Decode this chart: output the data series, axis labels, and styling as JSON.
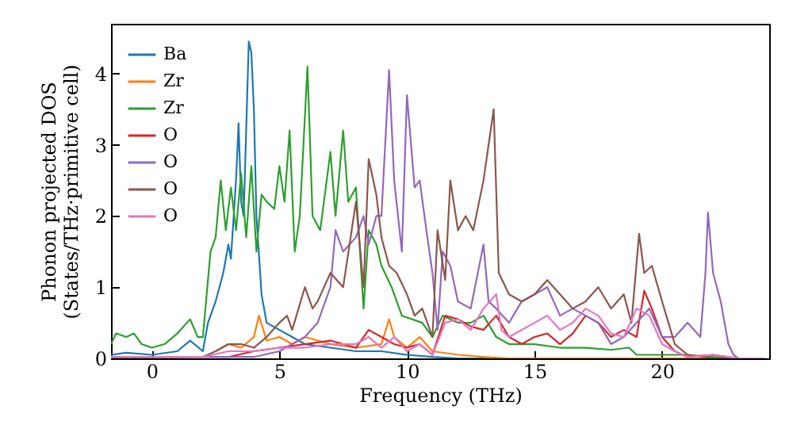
{
  "chart_data": {
    "type": "line",
    "xlabel": "Frequency (THz)",
    "ylabel": "Phonon projected DOS\n(States/THz·primitive cell)",
    "xlim": [
      -1.6,
      24.2
    ],
    "ylim": [
      0,
      4.7
    ],
    "xticks": [
      0,
      5,
      10,
      15,
      20
    ],
    "yticks": [
      0,
      1,
      2,
      3,
      4
    ],
    "grid": false,
    "legend": "top left",
    "series": [
      {
        "name": "Ba",
        "color": "#1f77b4",
        "x": [
          -1.6,
          -1,
          0,
          1,
          1.5,
          2,
          2.2,
          2.5,
          2.8,
          3.0,
          3.1,
          3.3,
          3.4,
          3.5,
          3.6,
          3.8,
          3.9,
          4.0,
          4.1,
          4.3,
          4.5,
          5,
          5.5,
          6,
          7,
          8,
          9,
          10,
          11,
          12,
          24
        ],
        "values": [
          0.05,
          0.08,
          0.05,
          0.1,
          0.25,
          0.1,
          0.5,
          0.8,
          1.2,
          1.6,
          1.4,
          2.5,
          3.3,
          2.2,
          2.0,
          4.45,
          4.3,
          3.5,
          2.0,
          0.9,
          0.5,
          0.4,
          0.3,
          0.2,
          0.15,
          0.1,
          0.1,
          0.05,
          0.02,
          0,
          0
        ]
      },
      {
        "name": "Zr",
        "color": "#ff7f0e",
        "x": [
          2.5,
          3,
          3.5,
          4,
          4.2,
          4.5,
          5,
          5.5,
          6,
          7,
          8,
          9,
          9.3,
          9.5,
          10,
          10.5,
          11,
          12,
          13,
          14,
          24
        ],
        "values": [
          0.1,
          0.2,
          0.15,
          0.3,
          0.6,
          0.25,
          0.3,
          0.2,
          0.3,
          0.2,
          0.15,
          0.2,
          0.55,
          0.3,
          0.15,
          0.3,
          0.1,
          0.05,
          0.02,
          0,
          0
        ]
      },
      {
        "name": "Zr",
        "color": "#2ca02c",
        "x": [
          -1.6,
          -1.4,
          -1,
          -0.7,
          -0.4,
          0,
          0.5,
          1,
          1.5,
          1.8,
          2.0,
          2.3,
          2.5,
          2.7,
          2.9,
          3.1,
          3.3,
          3.5,
          3.7,
          3.9,
          4.1,
          4.3,
          4.5,
          4.8,
          5.0,
          5.2,
          5.4,
          5.6,
          5.8,
          6.1,
          6.3,
          6.6,
          7.0,
          7.2,
          7.5,
          7.7,
          8.0,
          8.3,
          8.5,
          8.8,
          9.0,
          9.4,
          9.8,
          10.6,
          11,
          11.4,
          12,
          12.5,
          13,
          13.5,
          14,
          15,
          16,
          17,
          18,
          18.7,
          19,
          21,
          22,
          23,
          24
        ],
        "values": [
          0.2,
          0.35,
          0.3,
          0.35,
          0.2,
          0.15,
          0.2,
          0.35,
          0.55,
          0.3,
          0.3,
          1.5,
          1.7,
          2.5,
          1.8,
          2.4,
          1.8,
          2.6,
          1.7,
          2.7,
          1.5,
          2.3,
          2.2,
          2.1,
          2.7,
          2.2,
          3.2,
          1.5,
          2.0,
          4.1,
          2.0,
          1.8,
          2.9,
          2.0,
          3.2,
          2.2,
          2.4,
          0.7,
          1.8,
          1.6,
          1.3,
          1.0,
          0.6,
          0.5,
          0.3,
          0.6,
          0.5,
          0.5,
          0.6,
          0.3,
          0.2,
          0.2,
          0.15,
          0.15,
          0.12,
          0.15,
          0.05,
          0.05,
          0.02,
          0,
          0
        ]
      },
      {
        "name": "O",
        "color": "#d62728",
        "x": [
          -1.6,
          3,
          4,
          5,
          6,
          7,
          8,
          8.5,
          9,
          9.5,
          10,
          10.5,
          11,
          11.5,
          12,
          12.5,
          13,
          13.5,
          14,
          14.5,
          15,
          15.5,
          16,
          16.5,
          17,
          17.5,
          18,
          18.5,
          19,
          19.3,
          19.6,
          20,
          20.5,
          21,
          22,
          23,
          24
        ],
        "values": [
          0.02,
          0.02,
          0.1,
          0.15,
          0.2,
          0.25,
          0.15,
          0.4,
          0.3,
          0.2,
          0.15,
          0.2,
          0.05,
          0.6,
          0.55,
          0.45,
          0.4,
          0.6,
          0.3,
          0.2,
          0.3,
          0.35,
          0.2,
          0.35,
          0.6,
          0.5,
          0.3,
          0.4,
          0.3,
          0.95,
          0.7,
          0.3,
          0.1,
          0.02,
          0.05,
          0,
          0
        ]
      },
      {
        "name": "O",
        "color": "#9467bd",
        "x": [
          -1.6,
          4,
          5,
          6,
          6.5,
          7,
          7.2,
          7.5,
          8.0,
          8.3,
          8.5,
          8.8,
          9.0,
          9.3,
          9.5,
          9.8,
          10,
          10.3,
          10.5,
          10.8,
          11.0,
          11.2,
          11.4,
          11.7,
          12.0,
          12.5,
          13,
          13.2,
          13.5,
          14,
          14.5,
          15,
          15.5,
          16,
          16.5,
          17,
          17.5,
          18,
          18.5,
          19,
          19.5,
          20,
          20.5,
          21,
          21.5,
          21.7,
          21.8,
          22,
          22.3,
          22.6,
          22.8,
          23,
          24
        ],
        "values": [
          0.02,
          0.02,
          0.1,
          0.3,
          0.5,
          1.0,
          1.8,
          1.5,
          1.7,
          2.0,
          1.6,
          2.0,
          2.0,
          4.05,
          2.5,
          1.5,
          3.7,
          2.4,
          2.5,
          1.7,
          1.2,
          0.4,
          1.5,
          1.3,
          0.8,
          0.7,
          1.6,
          0.8,
          0.7,
          0.5,
          0.8,
          0.9,
          1.0,
          0.6,
          0.7,
          0.6,
          0.5,
          0.2,
          0.3,
          0.5,
          0.7,
          0.3,
          0.3,
          0.5,
          0.3,
          1.2,
          2.05,
          1.2,
          0.8,
          0.2,
          0.05,
          0,
          0
        ]
      },
      {
        "name": "O",
        "color": "#8c564b",
        "x": [
          -1.6,
          2,
          2.5,
          3,
          3.5,
          4,
          4.5,
          5,
          5.3,
          5.5,
          6,
          6.3,
          6.5,
          7,
          7.5,
          8,
          8.3,
          8.5,
          8.8,
          9.0,
          9.3,
          9.6,
          10,
          10.3,
          10.6,
          11,
          11.2,
          11.5,
          11.7,
          12.0,
          12.3,
          12.6,
          13,
          13.4,
          13.6,
          14,
          14.5,
          15,
          15.5,
          16,
          16.5,
          17,
          17.5,
          18,
          18.5,
          18.8,
          19.1,
          19.3,
          19.6,
          20,
          20.5,
          21,
          22,
          24
        ],
        "values": [
          0.01,
          0.02,
          0.1,
          0.2,
          0.2,
          0.15,
          0.3,
          0.5,
          0.6,
          0.4,
          1.0,
          0.7,
          0.8,
          1.2,
          1.0,
          2.2,
          1.0,
          2.8,
          2.3,
          1.7,
          1.3,
          1.2,
          0.9,
          0.6,
          0.7,
          0.3,
          1.8,
          1.1,
          2.5,
          1.8,
          2.0,
          1.8,
          2.5,
          3.5,
          1.2,
          0.9,
          0.8,
          0.9,
          1.1,
          0.9,
          0.7,
          0.8,
          1.0,
          0.7,
          0.9,
          0.5,
          1.75,
          1.2,
          1.3,
          0.8,
          0.2,
          0.05,
          0,
          0
        ]
      },
      {
        "name": "O",
        "color": "#e377c2",
        "x": [
          -1.6,
          2,
          3,
          4,
          5,
          6,
          7,
          8,
          8.5,
          9,
          9.5,
          10,
          10.5,
          11,
          11.5,
          12,
          12.5,
          13,
          13.5,
          13.7,
          14,
          15,
          15.5,
          16,
          16.5,
          17,
          17.5,
          18,
          18.5,
          19,
          19.5,
          20,
          20.5,
          21,
          22,
          23,
          24
        ],
        "values": [
          0.02,
          0.02,
          0.1,
          0.1,
          0.15,
          0.15,
          0.2,
          0.2,
          0.3,
          0.15,
          0.3,
          0.1,
          0.2,
          0.05,
          0.5,
          0.55,
          0.4,
          0.7,
          0.9,
          0.4,
          0.3,
          0.5,
          0.6,
          0.4,
          0.5,
          0.7,
          0.6,
          0.35,
          0.3,
          0.7,
          0.6,
          0.2,
          0.1,
          0.02,
          0.05,
          0,
          0
        ]
      }
    ]
  }
}
